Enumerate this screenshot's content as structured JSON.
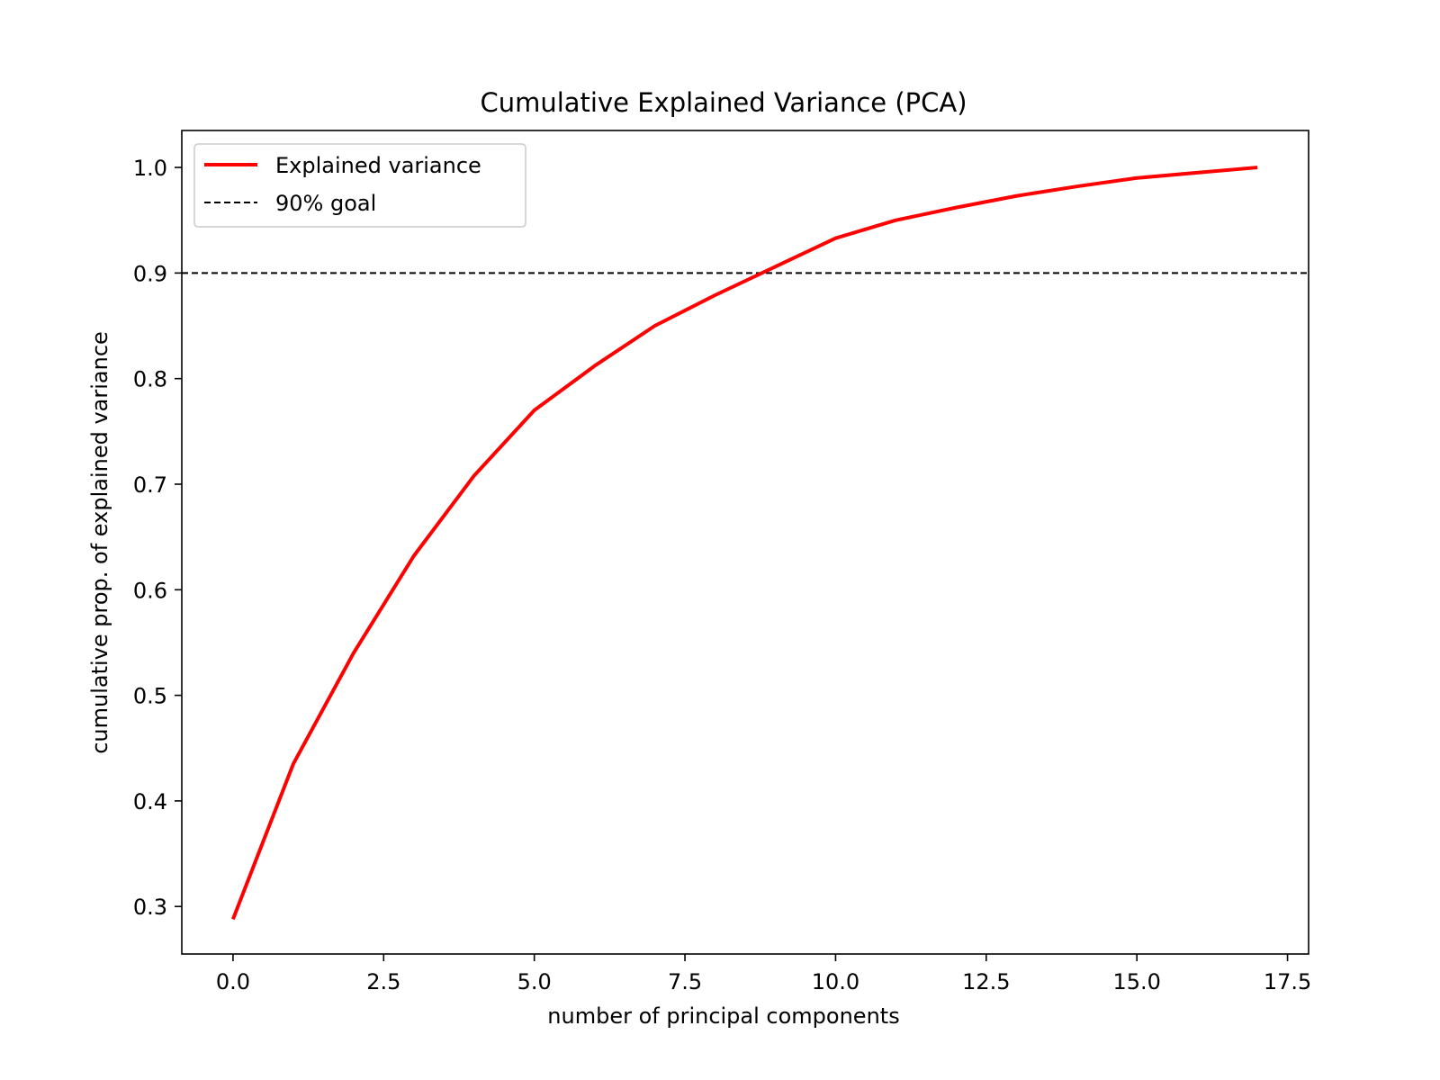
{
  "chart_data": {
    "type": "line",
    "title": "Cumulative Explained Variance (PCA)",
    "xlabel": "number of principal components",
    "ylabel": "cumulative prop. of explained variance",
    "xlim": [
      -0.85,
      17.85
    ],
    "ylim": [
      0.255,
      1.035
    ],
    "x_ticks": [
      0.0,
      2.5,
      5.0,
      7.5,
      10.0,
      12.5,
      15.0,
      17.5
    ],
    "x_tick_labels": [
      "0.0",
      "2.5",
      "5.0",
      "7.5",
      "10.0",
      "12.5",
      "15.0",
      "17.5"
    ],
    "y_ticks": [
      0.3,
      0.4,
      0.5,
      0.6,
      0.7,
      0.8,
      0.9,
      1.0
    ],
    "y_tick_labels": [
      "0.3",
      "0.4",
      "0.5",
      "0.6",
      "0.7",
      "0.8",
      "0.9",
      "1.0"
    ],
    "grid": false,
    "legend_position": "upper-left",
    "series": [
      {
        "name": "Explained variance",
        "style": "solid",
        "color": "#ff0000",
        "x": [
          0,
          1,
          2,
          3,
          4,
          5,
          6,
          7,
          8,
          9,
          10,
          11,
          12,
          13,
          14,
          15,
          16,
          17
        ],
        "values": [
          0.288,
          0.435,
          0.54,
          0.632,
          0.708,
          0.77,
          0.812,
          0.85,
          0.879,
          0.906,
          0.933,
          0.95,
          0.962,
          0.973,
          0.982,
          0.99,
          0.995,
          1.0
        ]
      }
    ],
    "reference_lines": [
      {
        "name": "90% goal",
        "orientation": "horizontal",
        "y": 0.9,
        "style": "dashed",
        "color": "#000000"
      }
    ]
  }
}
